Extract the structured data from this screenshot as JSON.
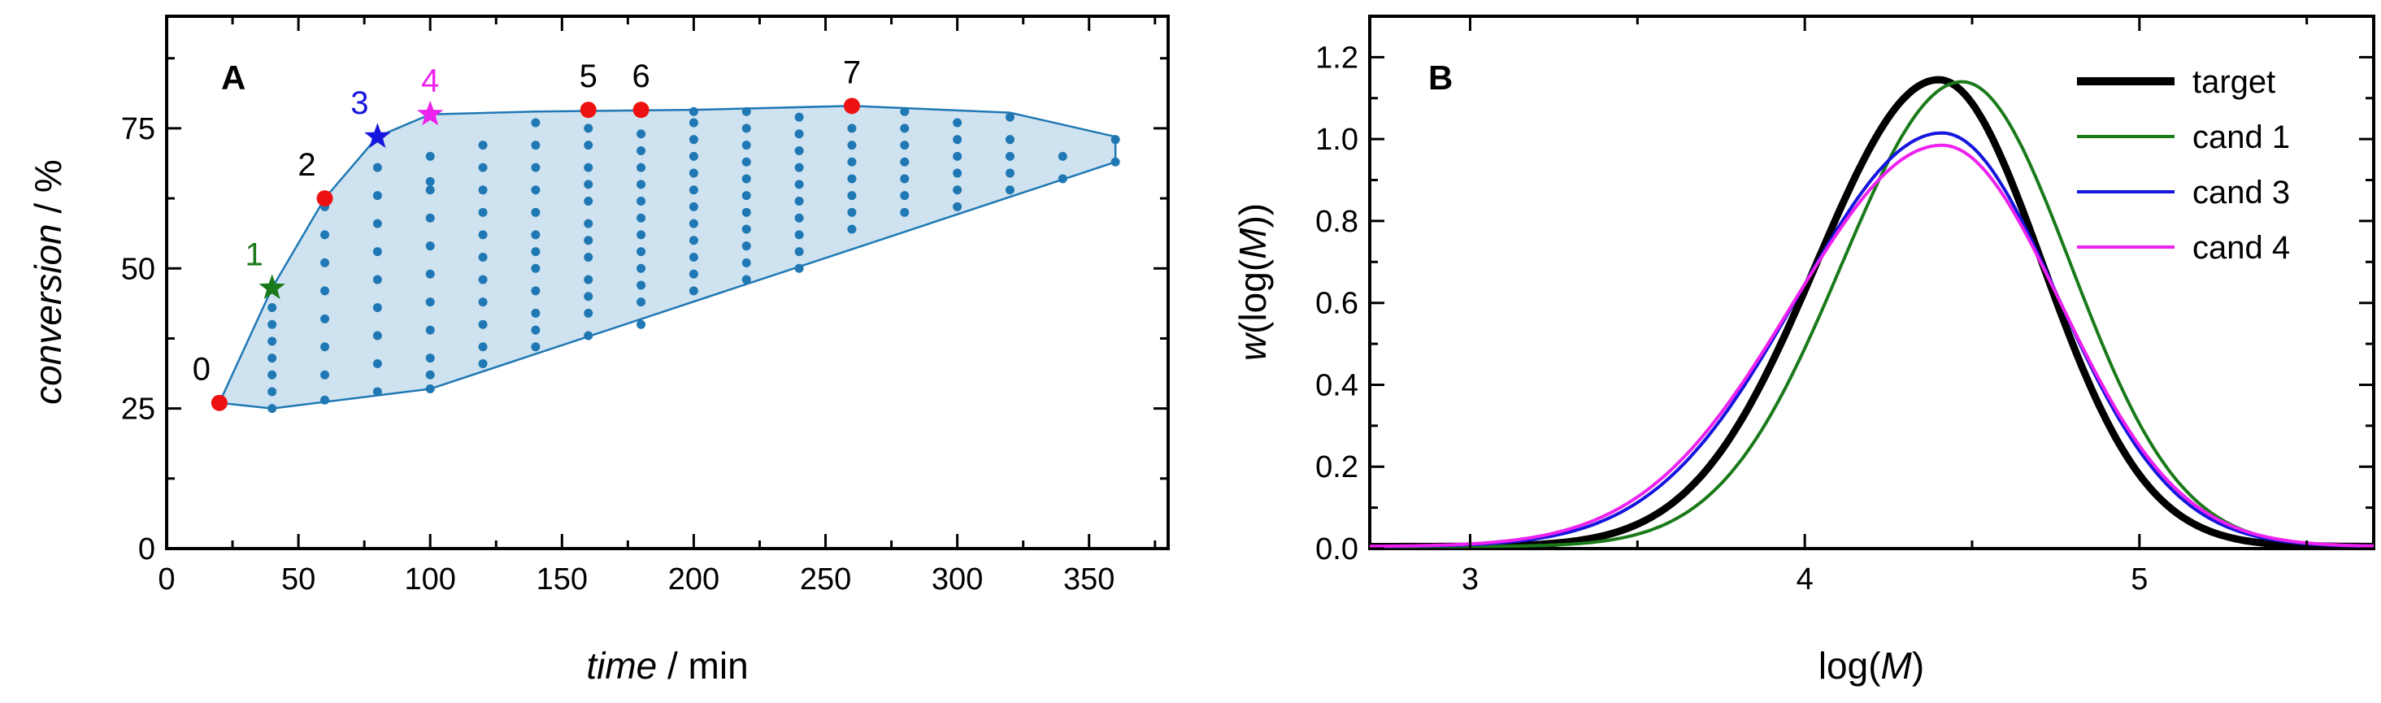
{
  "chart_data": [
    {
      "panel": "A",
      "type": "scatter",
      "xlabel": {
        "italic": "time",
        "rest": " / min"
      },
      "ylabel": {
        "italic": "conversion",
        "rest": " / %"
      },
      "xlim": [
        0,
        380
      ],
      "ylim": [
        0,
        95
      ],
      "xticks": [
        0,
        50,
        100,
        150,
        200,
        250,
        300,
        350
      ],
      "yticks": [
        0,
        25,
        50,
        75
      ],
      "hull": [
        [
          20,
          26
        ],
        [
          40,
          46.5
        ],
        [
          60,
          62.5
        ],
        [
          80,
          73.5
        ],
        [
          100,
          77.5
        ],
        [
          140,
          78
        ],
        [
          200,
          78.3
        ],
        [
          260,
          79
        ],
        [
          320,
          77.8
        ],
        [
          360,
          73.5
        ],
        [
          360,
          69
        ],
        [
          100,
          28.5
        ],
        [
          40,
          25
        ],
        [
          20,
          26
        ]
      ],
      "grid_points": [
        {
          "x": 40,
          "y": [
            25,
            28,
            31,
            34,
            37,
            40,
            43
          ]
        },
        {
          "x": 60,
          "y": [
            26.5,
            31,
            36,
            41,
            46,
            51,
            56,
            61
          ]
        },
        {
          "x": 80,
          "y": [
            28,
            33,
            38,
            43,
            48,
            53,
            58,
            63,
            68
          ]
        },
        {
          "x": 100,
          "y": [
            28.5,
            31,
            34,
            39,
            44,
            49,
            54,
            59,
            64,
            65.5,
            70
          ]
        },
        {
          "x": 120,
          "y": [
            33,
            36,
            40,
            44,
            48,
            52,
            56,
            60,
            64,
            68,
            72
          ]
        },
        {
          "x": 140,
          "y": [
            36,
            39,
            42,
            46,
            50,
            53,
            56,
            60,
            64,
            68,
            72,
            76
          ]
        },
        {
          "x": 160,
          "y": [
            38,
            42,
            45,
            48,
            52,
            55,
            58,
            62,
            65,
            68,
            72,
            75
          ]
        },
        {
          "x": 180,
          "y": [
            40,
            44,
            47,
            50,
            53,
            56,
            59,
            62,
            65,
            68,
            71,
            74
          ]
        },
        {
          "x": 200,
          "y": [
            46,
            49,
            52,
            55,
            58,
            61,
            64,
            67,
            70,
            73,
            76,
            78
          ]
        },
        {
          "x": 220,
          "y": [
            48,
            51,
            54,
            57,
            60,
            63,
            66,
            69,
            72,
            75,
            78
          ]
        },
        {
          "x": 240,
          "y": [
            50,
            53,
            56,
            59,
            62,
            65,
            68,
            71,
            74,
            77
          ]
        },
        {
          "x": 260,
          "y": [
            57,
            60,
            63,
            66,
            69,
            72,
            75
          ]
        },
        {
          "x": 280,
          "y": [
            60,
            63,
            66,
            69,
            72,
            75,
            78
          ]
        },
        {
          "x": 300,
          "y": [
            61,
            64,
            67,
            70,
            73,
            76
          ]
        },
        {
          "x": 320,
          "y": [
            64,
            67,
            70,
            73,
            77
          ]
        },
        {
          "x": 340,
          "y": [
            66,
            70
          ]
        },
        {
          "x": 360,
          "y": [
            69,
            73
          ]
        }
      ],
      "labeled_points": [
        {
          "label": "0",
          "x": 20,
          "y": 26,
          "marker": "circle",
          "color": "#ee1111"
        },
        {
          "label": "1",
          "x": 40,
          "y": 46.5,
          "marker": "star",
          "color": "#1a7a1a"
        },
        {
          "label": "2",
          "x": 60,
          "y": 62.5,
          "marker": "circle",
          "color": "#ee1111"
        },
        {
          "label": "3",
          "x": 80,
          "y": 73.5,
          "marker": "star",
          "color": "#1515dd"
        },
        {
          "label": "4",
          "x": 100,
          "y": 77.5,
          "marker": "star",
          "color": "#ee22ee"
        },
        {
          "label": "5",
          "x": 160,
          "y": 78.3,
          "marker": "circle",
          "color": "#ee1111"
        },
        {
          "label": "6",
          "x": 180,
          "y": 78.3,
          "marker": "circle",
          "color": "#ee1111"
        },
        {
          "label": "7",
          "x": 260,
          "y": 79,
          "marker": "circle",
          "color": "#ee1111"
        }
      ],
      "label_colors": {
        "0": "#000000",
        "1": "#1a7a1a",
        "2": "#000000",
        "3": "#1515dd",
        "4": "#ee22ee",
        "5": "#000000",
        "6": "#000000",
        "7": "#000000"
      }
    },
    {
      "panel": "B",
      "type": "line",
      "xlabel": {
        "plain": "log(",
        "italic": "M",
        "close": ")"
      },
      "ylabel": {
        "italic": "w",
        "mid": "(log(",
        "italic2": "M",
        "close": "))"
      },
      "xlim": [
        2.7,
        5.7
      ],
      "ylim": [
        0,
        1.3
      ],
      "xticks": [
        3,
        4,
        5
      ],
      "yticks": [
        "0.0",
        "0.2",
        "0.4",
        "0.6",
        "0.8",
        "1.0",
        "1.2"
      ],
      "legend_position": "top-right",
      "series": [
        {
          "name": "target",
          "color": "#000000",
          "mu": 4.4,
          "peak": 1.14,
          "sl": 0.365,
          "sr": 0.31,
          "thick": true
        },
        {
          "name": "cand 1",
          "color": "#1a7a1a",
          "mu": 4.47,
          "peak": 1.135,
          "sl": 0.36,
          "sr": 0.325,
          "thick": false
        },
        {
          "name": "cand 3",
          "color": "#1515dd",
          "mu": 4.41,
          "peak": 1.01,
          "sl": 0.43,
          "sr": 0.345,
          "thick": false
        },
        {
          "name": "cand 4",
          "color": "#ee22ee",
          "mu": 4.41,
          "peak": 0.98,
          "sl": 0.445,
          "sr": 0.355,
          "thick": false
        }
      ]
    }
  ]
}
